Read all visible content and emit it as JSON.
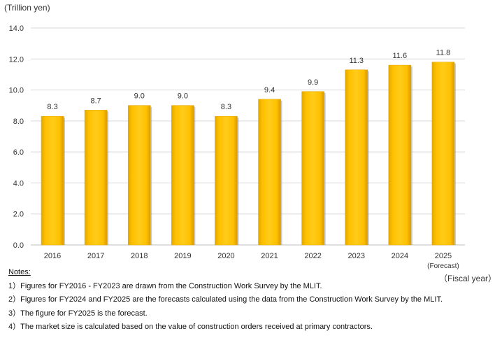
{
  "chart_data": {
    "type": "bar",
    "ylabel": "(Trillion yen)",
    "xlabel": "（Fiscal year）",
    "ylim": [
      0,
      14
    ],
    "yticks": [
      "0.0",
      "2.0",
      "4.0",
      "6.0",
      "8.0",
      "10.0",
      "12.0",
      "14.0"
    ],
    "grid": true,
    "categories": [
      "2016",
      "2017",
      "2018",
      "2019",
      "2020",
      "2021",
      "2022",
      "2023",
      "2024",
      "2025"
    ],
    "category_sublabels": [
      "",
      "",
      "",
      "",
      "",
      "",
      "",
      "",
      "",
      "(Forecast)"
    ],
    "values": [
      8.3,
      8.7,
      9.0,
      9.0,
      8.3,
      9.4,
      9.9,
      11.3,
      11.6,
      11.8
    ],
    "data_labels": [
      "8.3",
      "8.7",
      "9.0",
      "9.0",
      "8.3",
      "9.4",
      "9.9",
      "11.3",
      "11.6",
      "11.8"
    ],
    "bar_color": "#FFC000"
  },
  "notes": {
    "title": "Notes:",
    "items": [
      "1）Figures for FY2016 - FY2023 are drawn from the Construction Work Survey by the MLIT.",
      "2）Figures for FY2024 and FY2025 are the forecasts calculated using the data from the Construction Work Survey by the MLIT.",
      "3）The figure for FY2025 is the forecast.",
      "4）The market size is calculated based on the value of construction orders received at primary contractors."
    ]
  }
}
